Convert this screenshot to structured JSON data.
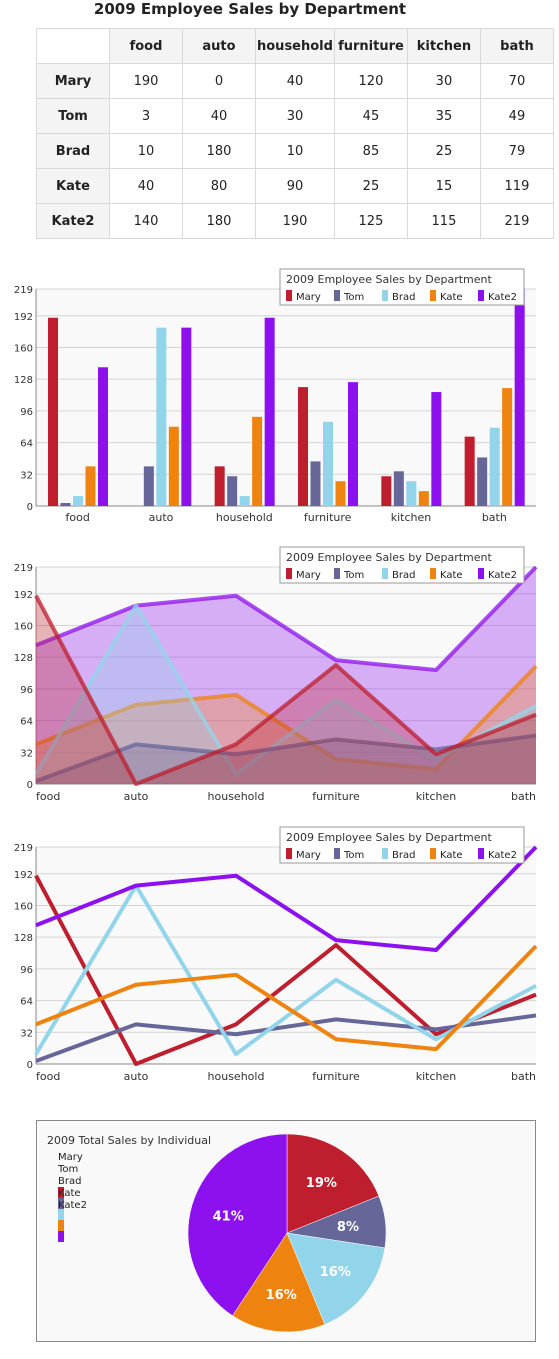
{
  "table": {
    "title": "2009 Employee Sales by Department",
    "columns": [
      "food",
      "auto",
      "household",
      "furniture",
      "kitchen",
      "bath"
    ],
    "rows": [
      {
        "name": "Mary",
        "values": [
          "190",
          "0",
          "40",
          "120",
          "30",
          "70"
        ]
      },
      {
        "name": "Tom",
        "values": [
          "3",
          "40",
          "30",
          "45",
          "35",
          "49"
        ]
      },
      {
        "name": "Brad",
        "values": [
          "10",
          "180",
          "10",
          "85",
          "25",
          "79"
        ]
      },
      {
        "name": "Kate",
        "values": [
          "40",
          "80",
          "90",
          "25",
          "15",
          "119"
        ]
      },
      {
        "name": "Kate2",
        "values": [
          "140",
          "180",
          "190",
          "125",
          "115",
          "219"
        ]
      }
    ]
  },
  "colors": {
    "Mary": "#be1e2d",
    "Tom": "#666699",
    "Brad": "#92d5ea",
    "Kate": "#ee8310",
    "Kate2": "#8d10ee"
  },
  "chart_data": [
    {
      "type": "bar",
      "legend_title": "2009 Employee Sales by Department",
      "legend_position": "top-right",
      "categories": [
        "food",
        "auto",
        "household",
        "furniture",
        "kitchen",
        "bath"
      ],
      "yticks": [
        0,
        32,
        64,
        96,
        128,
        160,
        192,
        219
      ],
      "ylim": [
        0,
        219
      ],
      "grid": true,
      "series": [
        {
          "name": "Mary",
          "values": [
            190,
            0,
            40,
            120,
            30,
            70
          ]
        },
        {
          "name": "Tom",
          "values": [
            3,
            40,
            30,
            45,
            35,
            49
          ]
        },
        {
          "name": "Brad",
          "values": [
            10,
            180,
            10,
            85,
            25,
            79
          ]
        },
        {
          "name": "Kate",
          "values": [
            40,
            80,
            90,
            25,
            15,
            119
          ]
        },
        {
          "name": "Kate2",
          "values": [
            140,
            180,
            190,
            125,
            115,
            219
          ]
        }
      ]
    },
    {
      "type": "area",
      "legend_title": "2009 Employee Sales by Department",
      "legend_position": "top-right",
      "categories": [
        "food",
        "auto",
        "household",
        "furniture",
        "kitchen",
        "bath"
      ],
      "yticks": [
        0,
        32,
        64,
        96,
        128,
        160,
        192,
        219
      ],
      "ylim": [
        0,
        219
      ],
      "grid": true,
      "series": [
        {
          "name": "Mary",
          "values": [
            190,
            0,
            40,
            120,
            30,
            70
          ]
        },
        {
          "name": "Tom",
          "values": [
            3,
            40,
            30,
            45,
            35,
            49
          ]
        },
        {
          "name": "Brad",
          "values": [
            10,
            180,
            10,
            85,
            25,
            79
          ]
        },
        {
          "name": "Kate",
          "values": [
            40,
            80,
            90,
            25,
            15,
            119
          ]
        },
        {
          "name": "Kate2",
          "values": [
            140,
            180,
            190,
            125,
            115,
            219
          ]
        }
      ]
    },
    {
      "type": "line",
      "legend_title": "2009 Employee Sales by Department",
      "legend_position": "top-right",
      "categories": [
        "food",
        "auto",
        "household",
        "furniture",
        "kitchen",
        "bath"
      ],
      "yticks": [
        0,
        32,
        64,
        96,
        128,
        160,
        192,
        219
      ],
      "ylim": [
        0,
        219
      ],
      "grid": true,
      "series": [
        {
          "name": "Mary",
          "values": [
            190,
            0,
            40,
            120,
            30,
            70
          ]
        },
        {
          "name": "Tom",
          "values": [
            3,
            40,
            30,
            45,
            35,
            49
          ]
        },
        {
          "name": "Brad",
          "values": [
            10,
            180,
            10,
            85,
            25,
            79
          ]
        },
        {
          "name": "Kate",
          "values": [
            40,
            80,
            90,
            25,
            15,
            119
          ]
        },
        {
          "name": "Kate2",
          "values": [
            140,
            180,
            190,
            125,
            115,
            219
          ]
        }
      ]
    },
    {
      "type": "pie",
      "title": "2009 Total Sales by Individual",
      "legend_position": "top-left",
      "slices": [
        {
          "name": "Mary",
          "value": 450,
          "label": "19%"
        },
        {
          "name": "Tom",
          "value": 202,
          "label": "8%"
        },
        {
          "name": "Brad",
          "value": 389,
          "label": "16%"
        },
        {
          "name": "Kate",
          "value": 369,
          "label": "16%"
        },
        {
          "name": "Kate2",
          "value": 969,
          "label": "41%"
        }
      ]
    }
  ]
}
